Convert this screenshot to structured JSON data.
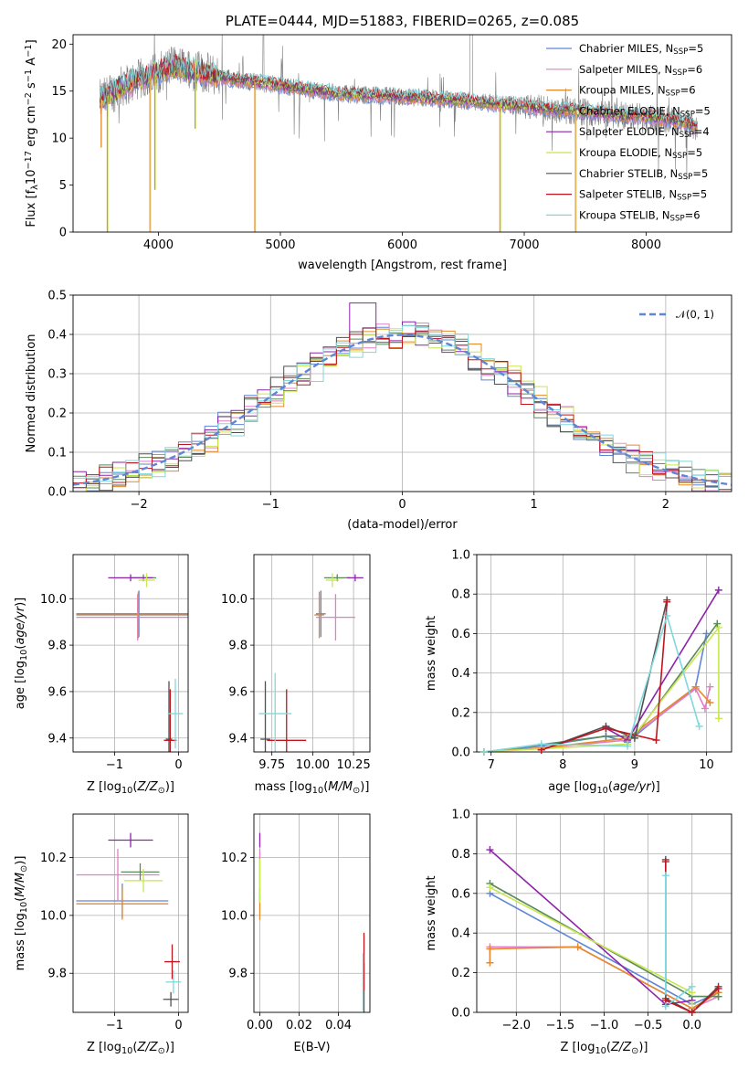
{
  "colors": {
    "cmiles": "#5f86d6",
    "smiles": "#e07fc7",
    "kmiles": "#e6892b",
    "celodie": "#5a8a5a",
    "selodie": "#8e24aa",
    "kelodie": "#c8e650",
    "cstelib": "#505050",
    "sstelib": "#c0141e",
    "kstelib": "#7fd8dc",
    "grey": "#808080",
    "normal": "#5f86d6"
  },
  "chart_data": [
    {
      "id": "spectrum",
      "type": "line",
      "title": "PLATE=0444, MJD=51883, FIBERID=0265, z=0.085",
      "xlabel": "wavelength [Angstrom, rest frame]",
      "ylabel": "Flux [f_λ 10^-17 erg cm^-2 s^-1 A^-1]",
      "xlim": [
        3300,
        8700
      ],
      "ylim": [
        0,
        21
      ],
      "xticks": [
        4000,
        5000,
        6000,
        7000,
        8000
      ],
      "yticks": [
        0,
        5,
        10,
        15,
        20
      ],
      "grid": false,
      "legend_position": "top-right",
      "legend": [
        {
          "label": "Chabrier MILES, N",
          "sub": "SSP",
          "val": "=5",
          "color": "cmiles"
        },
        {
          "label": "Salpeter MILES, N",
          "sub": "SSP",
          "val": "=6",
          "color": "smiles"
        },
        {
          "label": "Kroupa MILES, N",
          "sub": "SSP",
          "val": "=6",
          "color": "kmiles"
        },
        {
          "label": "Chabrier ELODIE, N",
          "sub": "SSP",
          "val": "=5",
          "color": "celodie"
        },
        {
          "label": "Salpeter ELODIE, N",
          "sub": "SSP",
          "val": "=4",
          "color": "selodie"
        },
        {
          "label": "Kroupa ELODIE, N",
          "sub": "SSP",
          "val": "=5",
          "color": "kelodie"
        },
        {
          "label": "Chabrier STELIB, N",
          "sub": "SSP",
          "val": "=5",
          "color": "cstelib"
        },
        {
          "label": "Salpeter STELIB, N",
          "sub": "SSP",
          "val": "=5",
          "color": "sstelib"
        },
        {
          "label": "Kroupa STELIB, N",
          "sub": "SSP",
          "val": "=6",
          "color": "kstelib"
        }
      ],
      "continuum": [
        [
          3520,
          14.0
        ],
        [
          3700,
          15.5
        ],
        [
          3900,
          16.5
        ],
        [
          4000,
          17.0
        ],
        [
          4100,
          17.6
        ],
        [
          4300,
          17.2
        ],
        [
          4600,
          16.3
        ],
        [
          5000,
          15.6
        ],
        [
          5500,
          14.7
        ],
        [
          6000,
          14.4
        ],
        [
          6500,
          14.0
        ],
        [
          6800,
          13.6
        ],
        [
          7000,
          13.4
        ],
        [
          7200,
          13.1
        ],
        [
          7500,
          12.8
        ],
        [
          7800,
          12.4
        ],
        [
          8000,
          12.3
        ],
        [
          8300,
          11.7
        ],
        [
          8420,
          11.2
        ]
      ],
      "dips": [
        [
          3530,
          9
        ],
        [
          3580,
          0
        ],
        [
          3930,
          0
        ],
        [
          3970,
          4.5
        ],
        [
          4300,
          11
        ],
        [
          4790,
          0
        ],
        [
          6800,
          0
        ],
        [
          7420,
          0
        ]
      ]
    },
    {
      "id": "residuals",
      "type": "line",
      "xlabel": "(data-model)/error",
      "ylabel": "Normed distribution",
      "xlim": [
        -2.5,
        2.5
      ],
      "ylim": [
        0,
        0.5
      ],
      "xticks": [
        -2,
        -1,
        0,
        1,
        2
      ],
      "yticks": [
        0.0,
        0.1,
        0.2,
        0.3,
        0.4,
        0.5
      ],
      "grid": true,
      "legend_position": "top-right",
      "legend_label": "𝒩(0, 1)",
      "bin_width": 0.1,
      "peak_bin": -0.3,
      "peak_value": 0.48
    },
    {
      "id": "age_vs_Z",
      "type": "scatter",
      "xlabel": "Z [log10(Z/Z⊙)]",
      "ylabel": "age [log10(age/yr)]",
      "xlim": [
        -1.65,
        0.15
      ],
      "ylim": [
        9.34,
        10.19
      ],
      "xticks": [
        -1,
        0
      ],
      "yticks": [
        9.4,
        9.6,
        9.8,
        10.0
      ],
      "grid": true,
      "points": [
        {
          "c": "cmiles",
          "x": -0.62,
          "xe": 0.98,
          "y": 9.935,
          "ye": 0.2
        },
        {
          "c": "smiles",
          "x": -0.64,
          "xe": 0.96,
          "y": 9.92,
          "ye": 0.2
        },
        {
          "c": "kmiles",
          "x": -0.63,
          "xe": 0.97,
          "y": 9.93,
          "ye": 0.2
        },
        {
          "c": "celodie",
          "x": -0.55,
          "xe": 0.2,
          "y": 10.09,
          "ye": 0.03
        },
        {
          "c": "selodie",
          "x": -0.75,
          "xe": 0.35,
          "y": 10.09,
          "ye": 0.03
        },
        {
          "c": "kelodie",
          "x": -0.5,
          "xe": 0.13,
          "y": 10.08,
          "ye": 0.06
        },
        {
          "c": "cstelib",
          "x": -0.15,
          "xe": 0.05,
          "y": 9.395,
          "ye": 0.5
        },
        {
          "c": "sstelib",
          "x": -0.13,
          "xe": 0.1,
          "y": 9.39,
          "ye": 0.44
        },
        {
          "c": "kstelib",
          "x": -0.05,
          "xe": 0.12,
          "y": 9.505,
          "ye": 0.3
        }
      ]
    },
    {
      "id": "age_vs_mass",
      "type": "scatter",
      "xlabel": "mass [log10(M/M⊙)]",
      "ylabel": "",
      "xlim": [
        9.64,
        10.35
      ],
      "ylim": [
        9.34,
        10.19
      ],
      "xticks": [
        9.75,
        10.0,
        10.25
      ],
      "yticks": [
        9.4,
        9.6,
        9.8,
        10.0
      ],
      "grid": true,
      "points": [
        {
          "c": "cmiles",
          "x": 10.05,
          "xe": 0.03,
          "y": 9.935,
          "ye": 0.2
        },
        {
          "c": "smiles",
          "x": 10.14,
          "xe": 0.12,
          "y": 9.92,
          "ye": 0.2
        },
        {
          "c": "kmiles",
          "x": 10.04,
          "xe": 0.03,
          "y": 9.93,
          "ye": 0.2
        },
        {
          "c": "celodie",
          "x": 10.15,
          "xe": 0.08,
          "y": 10.09,
          "ye": 0.03
        },
        {
          "c": "selodie",
          "x": 10.26,
          "xe": 0.05,
          "y": 10.09,
          "ye": 0.03
        },
        {
          "c": "kelodie",
          "x": 10.12,
          "xe": 0.04,
          "y": 10.08,
          "ye": 0.06
        },
        {
          "c": "cstelib",
          "x": 9.71,
          "xe": 0.03,
          "y": 9.395,
          "ye": 0.5
        },
        {
          "c": "sstelib",
          "x": 9.84,
          "xe": 0.12,
          "y": 9.39,
          "ye": 0.44
        },
        {
          "c": "kstelib",
          "x": 9.77,
          "xe": 0.1,
          "y": 9.505,
          "ye": 0.35
        }
      ]
    },
    {
      "id": "weight_vs_age",
      "type": "line",
      "xlabel": "age [log10(age/yr)]",
      "ylabel": "mass weight",
      "xlim": [
        6.8,
        10.35
      ],
      "ylim": [
        0,
        1
      ],
      "xticks": [
        7,
        8,
        9,
        10
      ],
      "yticks": [
        0.0,
        0.2,
        0.4,
        0.6,
        0.8,
        1.0
      ],
      "grid": true,
      "series": [
        {
          "c": "cmiles",
          "x": [
            6.9,
            7.7,
            8.6,
            8.9,
            9.85,
            10.0
          ],
          "y": [
            0.0,
            0.03,
            0.08,
            0.05,
            0.33,
            0.6
          ]
        },
        {
          "c": "smiles",
          "x": [
            6.9,
            7.7,
            8.9,
            9.85,
            9.98,
            10.05
          ],
          "y": [
            0.0,
            0.02,
            0.06,
            0.32,
            0.22,
            0.33
          ]
        },
        {
          "c": "kmiles",
          "x": [
            6.9,
            7.7,
            8.9,
            9.85,
            10.05
          ],
          "y": [
            0.0,
            0.02,
            0.07,
            0.33,
            0.25
          ]
        },
        {
          "c": "celodie",
          "x": [
            6.9,
            8.6,
            9.0,
            10.15
          ],
          "y": [
            0.0,
            0.08,
            0.08,
            0.65
          ]
        },
        {
          "c": "selodie",
          "x": [
            8.6,
            8.9,
            10.17
          ],
          "y": [
            0.12,
            0.06,
            0.82
          ]
        },
        {
          "c": "kelodie",
          "x": [
            6.9,
            8.9,
            10.17,
            10.17
          ],
          "y": [
            0.0,
            0.04,
            0.63,
            0.17
          ]
        },
        {
          "c": "cstelib",
          "x": [
            7.7,
            8.6,
            9.0,
            9.45
          ],
          "y": [
            0.01,
            0.13,
            0.07,
            0.77
          ]
        },
        {
          "c": "sstelib",
          "x": [
            7.7,
            8.6,
            9.3,
            9.45
          ],
          "y": [
            0.01,
            0.12,
            0.06,
            0.76
          ]
        },
        {
          "c": "kstelib",
          "x": [
            6.9,
            7.7,
            8.9,
            9.45,
            9.9
          ],
          "y": [
            0.0,
            0.04,
            0.03,
            0.69,
            0.13
          ]
        }
      ]
    },
    {
      "id": "mass_vs_Z",
      "type": "scatter",
      "xlabel": "Z [log10(Z/Z⊙)]",
      "ylabel": "mass [log10(M/M⊙)]",
      "xlim": [
        -1.65,
        0.15
      ],
      "ylim": [
        9.665,
        10.35
      ],
      "xticks": [
        -1,
        0
      ],
      "yticks": [
        9.8,
        10.0,
        10.2
      ],
      "grid": true,
      "points": [
        {
          "c": "cmiles",
          "x": -0.88,
          "xe": 0.72,
          "y": 10.05,
          "ye": 0.12
        },
        {
          "c": "smiles",
          "x": -0.95,
          "xe": 0.65,
          "y": 10.14,
          "ye": 0.18
        },
        {
          "c": "kmiles",
          "x": -0.88,
          "xe": 0.72,
          "y": 10.04,
          "ye": 0.11
        },
        {
          "c": "celodie",
          "x": -0.6,
          "xe": 0.3,
          "y": 10.15,
          "ye": 0.06
        },
        {
          "c": "selodie",
          "x": -0.75,
          "xe": 0.35,
          "y": 10.26,
          "ye": 0.05
        },
        {
          "c": "kelodie",
          "x": -0.55,
          "xe": 0.3,
          "y": 10.12,
          "ye": 0.08
        },
        {
          "c": "cstelib",
          "x": -0.12,
          "xe": 0.12,
          "y": 9.71,
          "ye": 0.05
        },
        {
          "c": "sstelib",
          "x": -0.1,
          "xe": 0.12,
          "y": 9.84,
          "ye": 0.12
        },
        {
          "c": "kstelib",
          "x": -0.08,
          "xe": 0.12,
          "y": 9.77,
          "ye": 0.08
        }
      ]
    },
    {
      "id": "mass_vs_ebv",
      "type": "scatter",
      "xlabel": "E(B-V)",
      "ylabel": "",
      "xlim": [
        -0.003,
        0.056
      ],
      "ylim": [
        9.665,
        10.35
      ],
      "xticks": [
        0.0,
        0.02,
        0.04
      ],
      "yticks": [
        9.8,
        10.0,
        10.2
      ],
      "grid": true,
      "points": [
        {
          "c": "smiles",
          "x": 0.0,
          "y": 10.14,
          "ye": 0.18
        },
        {
          "c": "kmiles",
          "x": 0.0,
          "y": 10.04,
          "ye": 0.11
        },
        {
          "c": "selodie",
          "x": 0.0,
          "y": 10.26,
          "ye": 0.05
        },
        {
          "c": "kelodie",
          "x": 0.0,
          "y": 10.12,
          "ye": 0.15
        },
        {
          "c": "cstelib",
          "x": 0.053,
          "y": 9.71,
          "ye": 0.25
        },
        {
          "c": "sstelib",
          "x": 0.053,
          "y": 9.84,
          "ye": 0.2
        },
        {
          "c": "kstelib",
          "x": 0.0525,
          "y": 9.77,
          "ye": 0.2
        }
      ]
    },
    {
      "id": "weight_vs_Z",
      "type": "line",
      "xlabel": "Z [log10(Z/Z⊙)]",
      "ylabel": "mass weight",
      "xlim": [
        -2.45,
        0.45
      ],
      "ylim": [
        0,
        1
      ],
      "xticks": [
        -2.0,
        -1.5,
        -1.0,
        -0.5,
        0.0
      ],
      "yticks": [
        0.0,
        0.2,
        0.4,
        0.6,
        0.8,
        1.0
      ],
      "grid": true,
      "series": [
        {
          "c": "cmiles",
          "x": [
            -2.3,
            0.0,
            0.3
          ],
          "y": [
            0.6,
            0.04,
            0.1
          ]
        },
        {
          "c": "smiles",
          "x": [
            -2.3,
            -1.3,
            0.0,
            0.3
          ],
          "y": [
            0.33,
            0.33,
            0.02,
            0.08
          ]
        },
        {
          "c": "kmiles",
          "x": [
            -2.3,
            -2.3,
            -1.3,
            0.0,
            0.3
          ],
          "y": [
            0.25,
            0.32,
            0.33,
            0.02,
            0.1
          ]
        },
        {
          "c": "celodie",
          "x": [
            -2.3,
            0.0,
            0.3
          ],
          "y": [
            0.65,
            0.08,
            0.08
          ]
        },
        {
          "c": "selodie",
          "x": [
            -2.3,
            -0.3,
            0.0
          ],
          "y": [
            0.82,
            0.04,
            0.06
          ]
        },
        {
          "c": "kelodie",
          "x": [
            -2.3,
            0.0,
            0.0
          ],
          "y": [
            0.63,
            0.1,
            0.04
          ]
        },
        {
          "c": "cstelib",
          "x": [
            -0.3,
            -0.3,
            0.0,
            0.3
          ],
          "y": [
            0.77,
            0.07,
            0.0,
            0.13
          ]
        },
        {
          "c": "sstelib",
          "x": [
            -0.3,
            -0.3,
            0.0,
            0.3
          ],
          "y": [
            0.76,
            0.06,
            0.0,
            0.12
          ]
        },
        {
          "c": "kstelib",
          "x": [
            -0.3,
            -0.3,
            0.0
          ],
          "y": [
            0.69,
            0.03,
            0.13
          ]
        }
      ]
    }
  ]
}
